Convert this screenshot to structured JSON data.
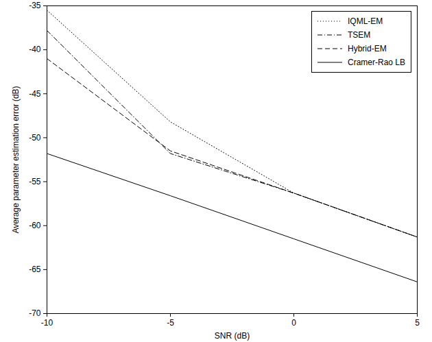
{
  "chart_data": {
    "type": "line",
    "x_label": "SNR (dB)",
    "y_label": "Average parameter estimation error (dB)",
    "x": [
      -10,
      -5,
      0,
      5
    ],
    "series": [
      {
        "name": "IQML-EM",
        "color": "#000000",
        "line_style": "dotted",
        "values": [
          -35.5,
          -48.2,
          -56.3,
          -61.3
        ]
      },
      {
        "name": "TSEM",
        "color": "#000000",
        "line_style": "dashdot",
        "values": [
          -37.8,
          -51.8,
          -56.3,
          -61.3
        ]
      },
      {
        "name": "Hybrid-EM",
        "color": "#000000",
        "line_style": "dashed",
        "values": [
          -41,
          -51.5,
          -56.3,
          -61.3
        ]
      },
      {
        "name": "Cramer-Rao LB",
        "color": "#000000",
        "line_style": "solid",
        "values": [
          -51.8,
          -56.6,
          -61.5,
          -66.4
        ]
      }
    ],
    "xlim": [
      -10,
      5
    ],
    "xticks": [
      -10,
      -5,
      0,
      5
    ],
    "ylim": [
      -70,
      -35
    ],
    "yticks": [
      -70,
      -65,
      -60,
      -55,
      -50,
      -45,
      -40,
      -35
    ],
    "grid": false,
    "legend": "northeast"
  }
}
